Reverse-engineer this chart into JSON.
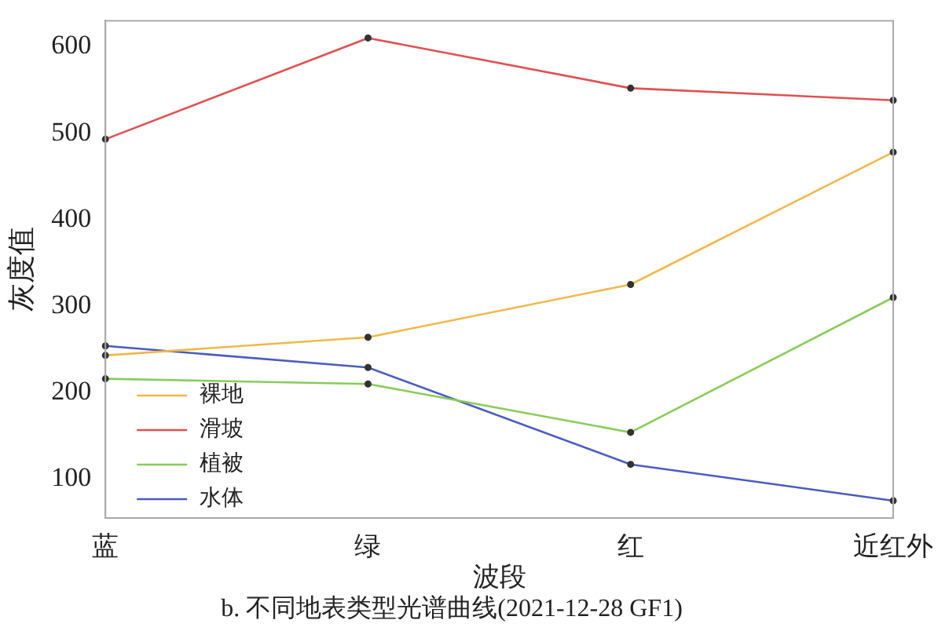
{
  "chart_data": {
    "type": "line",
    "title": "b. 不同地表类型光谱曲线(2021-12-28 GF1)",
    "xlabel": "波段",
    "ylabel": "灰度值",
    "categories": [
      "蓝",
      "绿",
      "红",
      "近红外"
    ],
    "series": [
      {
        "name": "裸地",
        "color": "#f0b84a",
        "values": [
          243,
          264,
          325,
          478
        ]
      },
      {
        "name": "滑坡",
        "color": "#e05050",
        "values": [
          493,
          610,
          552,
          538
        ]
      },
      {
        "name": "植被",
        "color": "#88cc5a",
        "values": [
          216,
          210,
          154,
          310
        ]
      },
      {
        "name": "水体",
        "color": "#4a5cc0",
        "values": [
          254,
          229,
          117,
          75
        ]
      }
    ],
    "ylim": [
      55,
      630
    ],
    "yticks": [
      100,
      200,
      300,
      400,
      500,
      600
    ],
    "grid": false,
    "legend": "bottom left",
    "marker": "circle",
    "line_style": "solid"
  }
}
